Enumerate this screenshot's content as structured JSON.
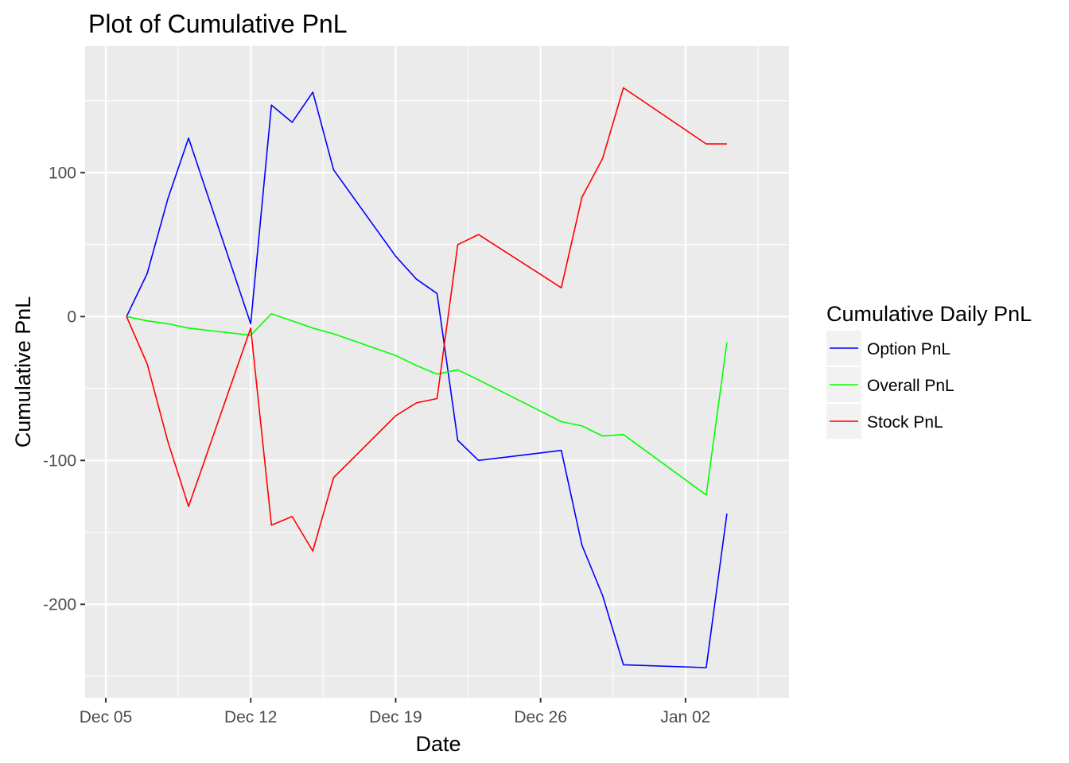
{
  "chart_data": {
    "type": "line",
    "title": "Plot of Cumulative PnL",
    "xlabel": "Date",
    "ylabel": "Cumulative PnL",
    "xlim": [
      "2016-12-04",
      "2017-01-07"
    ],
    "ylim": [
      -265,
      188
    ],
    "x_ticks": [
      {
        "date": "2016-12-05",
        "label": "Dec 05"
      },
      {
        "date": "2016-12-12",
        "label": "Dec 12"
      },
      {
        "date": "2016-12-19",
        "label": "Dec 19"
      },
      {
        "date": "2016-12-26",
        "label": "Dec 26"
      },
      {
        "date": "2017-01-02",
        "label": "Jan 02"
      }
    ],
    "y_ticks": [
      -200,
      -100,
      0,
      100
    ],
    "y_tick_labels": [
      "-200",
      "-100",
      "0",
      "100"
    ],
    "grid": true,
    "legend": {
      "title": "Cumulative Daily PnL",
      "position": "right"
    },
    "x": [
      "2016-12-06",
      "2016-12-07",
      "2016-12-08",
      "2016-12-09",
      "2016-12-12",
      "2016-12-13",
      "2016-12-14",
      "2016-12-15",
      "2016-12-16",
      "2016-12-19",
      "2016-12-20",
      "2016-12-21",
      "2016-12-22",
      "2016-12-23",
      "2016-12-27",
      "2016-12-28",
      "2016-12-29",
      "2016-12-30",
      "2017-01-03",
      "2017-01-04"
    ],
    "series": [
      {
        "name": "Option PnL",
        "color": "#0000ff",
        "values": [
          0,
          30,
          82,
          124,
          -5,
          147,
          135,
          156,
          102,
          42,
          26,
          16,
          -86,
          -100,
          -93,
          -159,
          -194,
          -242,
          -244,
          -137
        ]
      },
      {
        "name": "Overall PnL",
        "color": "#00ff00",
        "values": [
          0,
          -3,
          -5,
          -8,
          -13,
          2,
          -3,
          -8,
          -12,
          -27,
          -34,
          -40,
          -37,
          -44,
          -73,
          -76,
          -83,
          -82,
          -124,
          -18
        ]
      },
      {
        "name": "Stock PnL",
        "color": "#ff0000",
        "values": [
          0,
          -33,
          -87,
          -132,
          -8,
          -145,
          -139,
          -163,
          -112,
          -69,
          -60,
          -57,
          50,
          57,
          20,
          83,
          110,
          159,
          120,
          120
        ]
      }
    ]
  }
}
